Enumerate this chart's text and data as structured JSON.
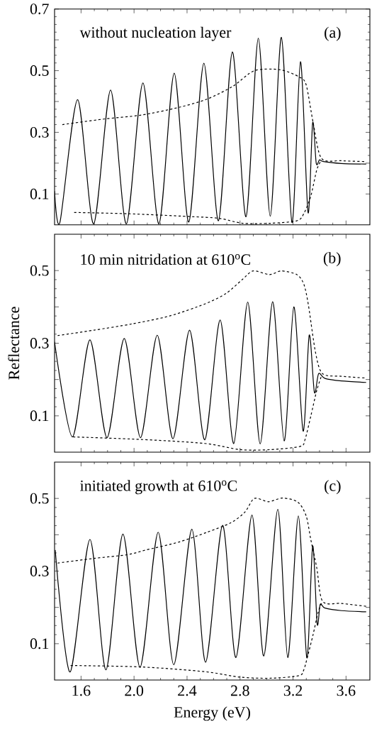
{
  "chart_data": [
    {
      "type": "line",
      "xlim": [
        1.4,
        3.78
      ],
      "ylim": [
        0,
        0.7
      ],
      "tick_labels": "y",
      "yticks": [
        0.1,
        {
          "value": 0.2,
          "label": null
        },
        0.3,
        {
          "value": 0.4,
          "label": null
        },
        0.5,
        {
          "value": 0.6,
          "label": null
        },
        0.7
      ],
      "annotations": [
        "without nucleation layer",
        "(a)"
      ],
      "series": [
        {
          "color": "#000000",
          "line_style": "solid",
          "x": [
            1.4,
            1.441,
            1.574,
            1.695,
            1.823,
            1.942,
            2.067,
            2.188,
            2.303,
            2.413,
            2.527,
            2.637,
            2.742,
            2.845,
            2.938,
            3.028,
            3.112,
            3.192,
            3.256,
            3.313,
            3.348,
            3.375,
            3.4,
            3.43,
            3.565,
            3.752
          ],
          "values": [
            0.109,
            0.009,
            0.406,
            0.003,
            0.437,
            0.003,
            0.46,
            0.003,
            0.492,
            0.009,
            0.524,
            0.013,
            0.561,
            0.026,
            0.605,
            0.028,
            0.608,
            0.007,
            0.529,
            0.04,
            0.331,
            0.2,
            0.211,
            0.205,
            0.199,
            0.197
          ]
        },
        {
          "color": "#000000",
          "line_style": "dashed",
          "x": [
            1.459,
            1.77,
            2.054,
            2.339,
            2.552,
            2.748,
            2.908,
            3.103,
            3.245,
            3.299,
            3.352,
            3.414,
            3.565,
            3.752
          ],
          "values": [
            0.325,
            0.343,
            0.356,
            0.381,
            0.408,
            0.45,
            0.5,
            0.503,
            0.48,
            0.454,
            0.331,
            0.216,
            0.208,
            0.205
          ]
        },
        {
          "color": "#000000",
          "line_style": "dashed",
          "x": [
            1.548,
            1.948,
            2.41,
            2.641,
            2.819,
            3.032,
            3.228,
            3.281,
            3.334,
            3.379,
            3.414
          ],
          "values": [
            0.04,
            0.036,
            0.027,
            0.021,
            0.005,
            0.005,
            0.013,
            0.036,
            0.093,
            0.178,
            0.21
          ]
        }
      ]
    },
    {
      "type": "line",
      "xlim": [
        1.4,
        3.78
      ],
      "ylim": [
        0,
        0.6
      ],
      "tick_labels": "y",
      "ylabel": "Reflectance",
      "yticks": [
        0.1,
        {
          "value": 0.2,
          "label": null
        },
        0.3,
        {
          "value": 0.4,
          "label": null
        },
        0.5
      ],
      "annotations": [
        "10 min  nitridation at 610$^{o}$C",
        "(b)"
      ],
      "series": [
        {
          "color": "#000000",
          "line_style": "solid",
          "x": [
            1.4,
            1.535,
            1.667,
            1.796,
            1.926,
            2.049,
            2.175,
            2.294,
            2.419,
            2.534,
            2.65,
            2.753,
            2.858,
            2.952,
            3.046,
            3.133,
            3.206,
            3.276,
            3.322,
            3.361,
            3.393,
            3.441,
            3.565,
            3.752
          ],
          "values": [
            0.304,
            0.042,
            0.309,
            0.04,
            0.313,
            0.04,
            0.322,
            0.037,
            0.336,
            0.034,
            0.364,
            0.024,
            0.413,
            0.023,
            0.414,
            0.031,
            0.4,
            0.058,
            0.322,
            0.165,
            0.216,
            0.203,
            0.196,
            0.192
          ]
        },
        {
          "color": "#000000",
          "line_style": "dashed",
          "x": [
            1.423,
            1.699,
            1.983,
            2.268,
            2.534,
            2.694,
            2.819,
            2.899,
            3.023,
            3.112,
            3.228,
            3.281,
            3.316,
            3.37,
            3.423,
            3.565,
            3.752
          ],
          "values": [
            0.321,
            0.336,
            0.353,
            0.375,
            0.408,
            0.437,
            0.476,
            0.499,
            0.489,
            0.499,
            0.489,
            0.463,
            0.405,
            0.274,
            0.216,
            0.209,
            0.204
          ]
        },
        {
          "color": "#000000",
          "line_style": "dashed",
          "x": [
            1.539,
            2.054,
            2.534,
            2.801,
            3.032,
            3.254,
            3.29,
            3.334,
            3.379,
            3.414
          ],
          "values": [
            0.042,
            0.035,
            0.024,
            0.007,
            0.007,
            0.016,
            0.034,
            0.099,
            0.17,
            0.209
          ]
        }
      ]
    },
    {
      "type": "line",
      "xlim": [
        1.4,
        3.78
      ],
      "ylim": [
        0,
        0.6
      ],
      "xlabel": "Energy (eV)",
      "xticks": [
        1.6,
        {
          "value": 2.0,
          "label": "2.0"
        },
        2.4,
        2.8,
        3.2,
        3.6
      ],
      "yticks": [
        0.1,
        {
          "value": 0.2,
          "label": null
        },
        0.3,
        {
          "value": 0.4,
          "label": null
        },
        0.5
      ],
      "annotations": [
        "initiated growth at 610$^{o}$C",
        "(c)"
      ],
      "series": [
        {
          "color": "#000000",
          "line_style": "solid",
          "x": [
            1.405,
            1.517,
            1.667,
            1.788,
            1.916,
            2.045,
            2.182,
            2.3,
            2.436,
            2.54,
            2.668,
            2.769,
            2.89,
            2.979,
            3.085,
            3.16,
            3.24,
            3.304,
            3.348,
            3.382,
            3.405,
            3.441,
            3.565,
            3.752
          ],
          "values": [
            0.358,
            0.022,
            0.387,
            0.028,
            0.402,
            0.035,
            0.407,
            0.042,
            0.415,
            0.049,
            0.426,
            0.062,
            0.454,
            0.066,
            0.47,
            0.062,
            0.452,
            0.061,
            0.369,
            0.155,
            0.208,
            0.198,
            0.191,
            0.188
          ]
        },
        {
          "color": "#000000",
          "line_style": "dashed",
          "x": [
            1.423,
            1.699,
            1.948,
            2.09,
            2.339,
            2.552,
            2.73,
            2.836,
            2.908,
            3.014,
            3.121,
            3.236,
            3.299,
            3.334,
            3.379,
            3.423,
            3.565,
            3.752
          ],
          "values": [
            0.322,
            0.335,
            0.345,
            0.358,
            0.38,
            0.407,
            0.433,
            0.462,
            0.5,
            0.491,
            0.501,
            0.49,
            0.452,
            0.387,
            0.309,
            0.217,
            0.211,
            0.203
          ]
        },
        {
          "color": "#000000",
          "line_style": "dashed",
          "x": [
            1.521,
            2.054,
            2.534,
            2.801,
            3.032,
            3.245,
            3.281,
            3.307,
            3.352,
            3.388,
            3.414
          ],
          "values": [
            0.04,
            0.036,
            0.023,
            0.008,
            0.005,
            0.012,
            0.028,
            0.061,
            0.126,
            0.185,
            0.211
          ]
        }
      ]
    }
  ]
}
